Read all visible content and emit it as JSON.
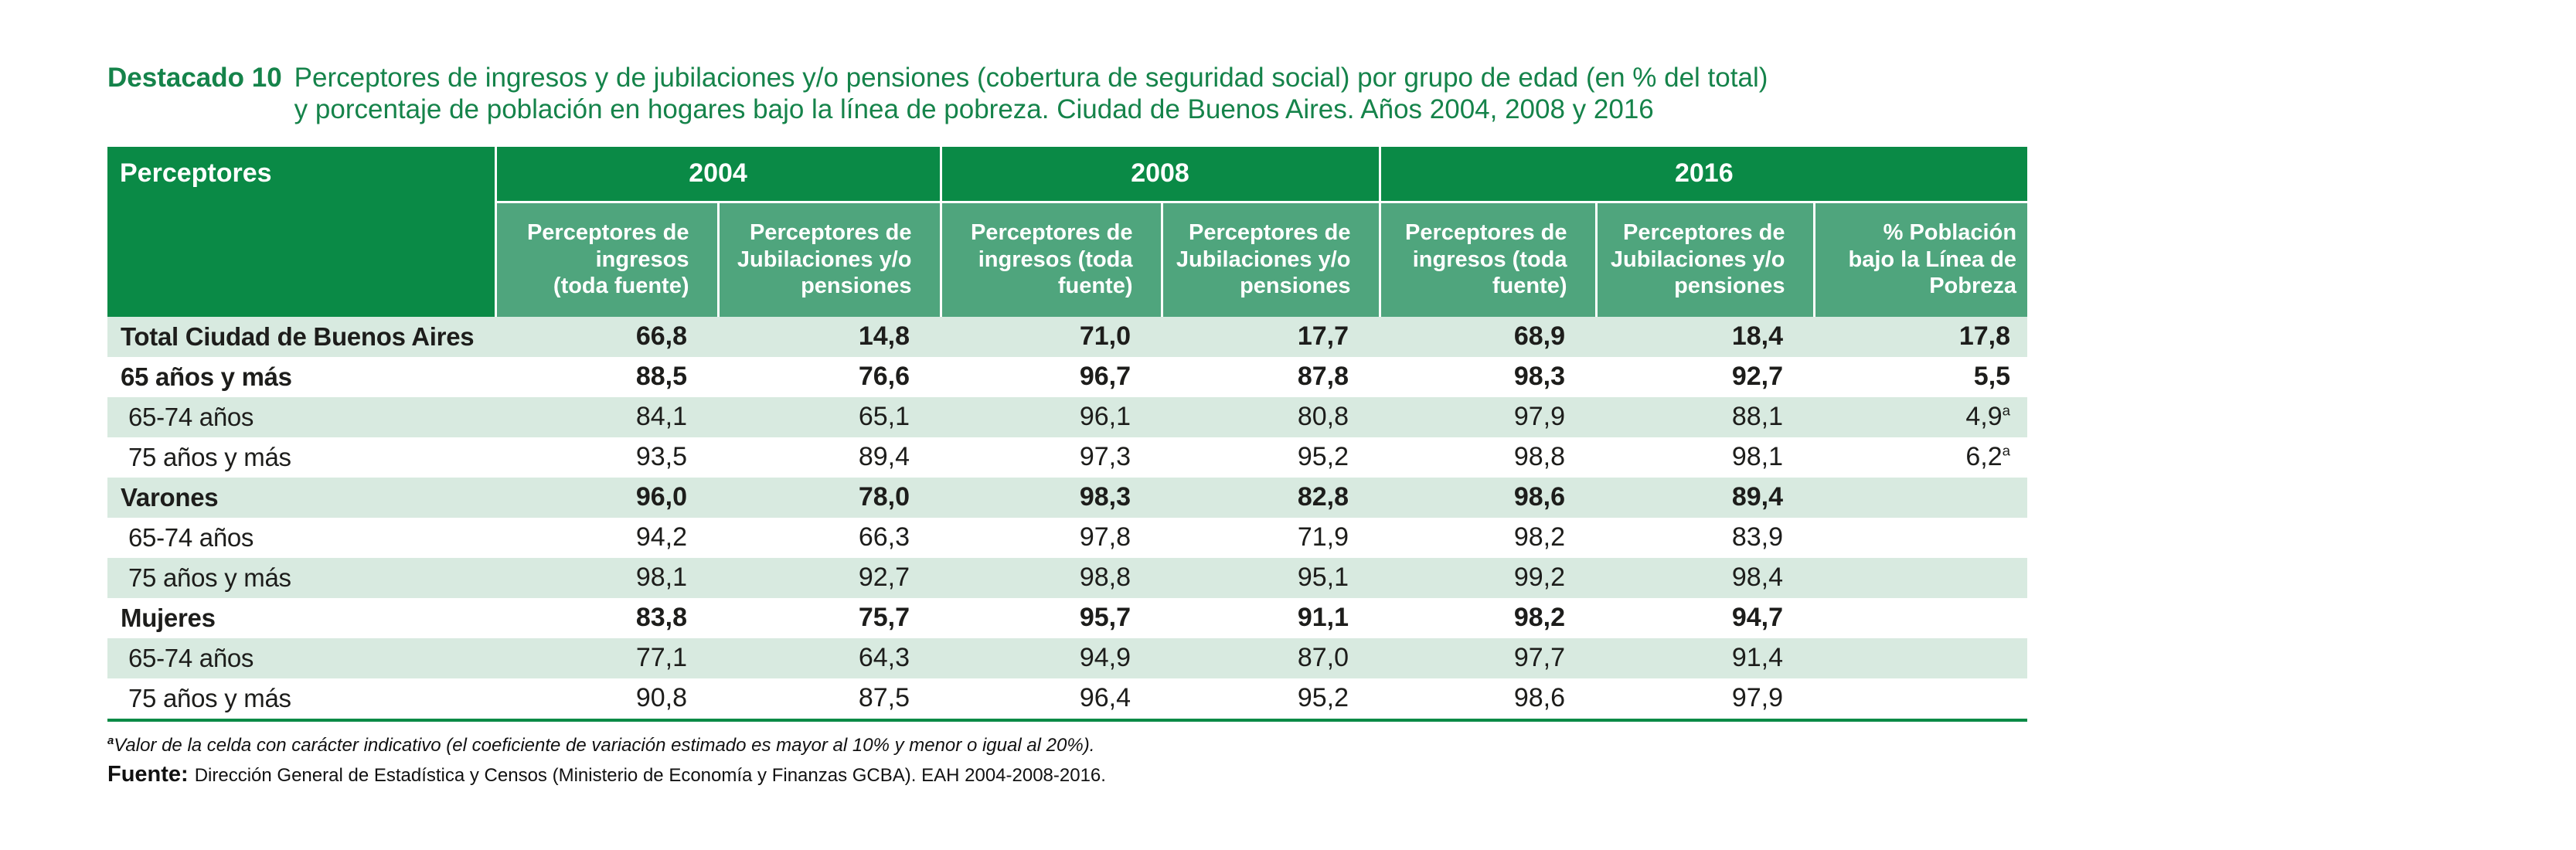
{
  "colors": {
    "header_dark_green": "#0a8a46",
    "header_medium_green": "#4fa57d",
    "row_stripe_green": "#d8eae0",
    "title_green": "#15834a",
    "text": "#1d1d1b"
  },
  "title": {
    "tag": "Destacado 10",
    "line1": "Perceptores de ingresos y de jubilaciones y/o pensiones (cobertura de seguridad social) por grupo de edad (en % del total)",
    "line2": "y porcentaje de población en hogares bajo la línea de pobreza. Ciudad de Buenos Aires. Años 2004, 2008 y 2016"
  },
  "table": {
    "corner_header": "Perceptores",
    "year_groups": [
      {
        "label": "2004",
        "span": 2
      },
      {
        "label": "2008",
        "span": 2
      },
      {
        "label": "2016",
        "span": 3
      }
    ],
    "sub_headers": [
      "Perceptores de\ningresos\n(toda fuente)",
      "Perceptores de\nJubilaciones y/o\npensiones",
      "Perceptores de\ningresos (toda\nfuente)",
      "Perceptores de\nJubilaciones y/o\npensiones",
      "Perceptores de\ningresos (toda\nfuente)",
      "Perceptores de\nJubilaciones y/o\npensiones",
      "% Población\nbajo la Línea de\nPobreza"
    ],
    "rows": [
      {
        "label": "Total Ciudad de Buenos Aires",
        "bold": true,
        "values": [
          "66,8",
          "14,8",
          "71,0",
          "17,7",
          "68,9",
          "18,4",
          "17,8"
        ],
        "sup": ""
      },
      {
        "label": "65 años y más",
        "bold": true,
        "values": [
          "88,5",
          "76,6",
          "96,7",
          "87,8",
          "98,3",
          "92,7",
          "5,5"
        ],
        "sup": ""
      },
      {
        "label": "65-74 años",
        "bold": false,
        "values": [
          "84,1",
          "65,1",
          "96,1",
          "80,8",
          "97,9",
          "88,1",
          "4,9"
        ],
        "sup": "a"
      },
      {
        "label": "75 años y más",
        "bold": false,
        "values": [
          "93,5",
          "89,4",
          "97,3",
          "95,2",
          "98,8",
          "98,1",
          "6,2"
        ],
        "sup": "a"
      },
      {
        "label": "Varones",
        "bold": true,
        "values": [
          "96,0",
          "78,0",
          "98,3",
          "82,8",
          "98,6",
          "89,4",
          ""
        ],
        "sup": ""
      },
      {
        "label": "65-74 años",
        "bold": false,
        "values": [
          "94,2",
          "66,3",
          "97,8",
          "71,9",
          "98,2",
          "83,9",
          ""
        ],
        "sup": ""
      },
      {
        "label": "75 años y más",
        "bold": false,
        "values": [
          "98,1",
          "92,7",
          "98,8",
          "95,1",
          "99,2",
          "98,4",
          ""
        ],
        "sup": ""
      },
      {
        "label": "Mujeres",
        "bold": true,
        "values": [
          "83,8",
          "75,7",
          "95,7",
          "91,1",
          "98,2",
          "94,7",
          ""
        ],
        "sup": ""
      },
      {
        "label": "65-74 años",
        "bold": false,
        "values": [
          "77,1",
          "64,3",
          "94,9",
          "87,0",
          "97,7",
          "91,4",
          ""
        ],
        "sup": ""
      },
      {
        "label": "75 años y más",
        "bold": false,
        "values": [
          "90,8",
          "87,5",
          "96,4",
          "95,2",
          "98,6",
          "97,9",
          ""
        ],
        "sup": ""
      }
    ]
  },
  "footnotes": {
    "note_sup": "a",
    "note_text": "Valor de la celda con carácter indicativo (el coeficiente de variación estimado es mayor al 10% y menor o igual al 20%).",
    "source_label": "Fuente:",
    "source_text": "Dirección General de Estadística y Censos (Ministerio de Economía y Finanzas GCBA). EAH 2004-2008-2016."
  }
}
